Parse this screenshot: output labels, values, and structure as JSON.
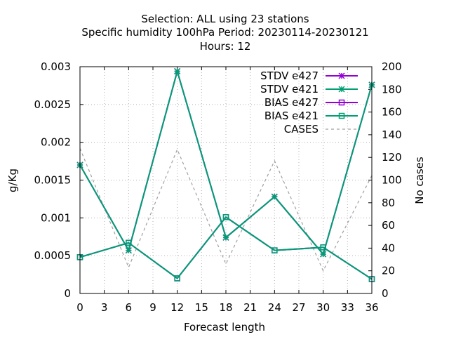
{
  "chart_data": {
    "type": "line",
    "title_lines": [
      "Selection: ALL using    23 stations",
      "Specific humidity 100hPa   Period: 20230114-20230121",
      "Hours:  12"
    ],
    "xlabel": "Forecast length",
    "ylabel": "g/Kg",
    "y2label": "No cases",
    "x": [
      0,
      6,
      12,
      18,
      24,
      30,
      36
    ],
    "xlim": [
      0,
      36
    ],
    "ylim": [
      0,
      0.003
    ],
    "y2lim": [
      0,
      200
    ],
    "x_ticks": [
      "0",
      "3",
      "6",
      "9",
      "12",
      "15",
      "18",
      "21",
      "24",
      "27",
      "30",
      "33",
      "36"
    ],
    "y_ticks": [
      "0",
      "0.0005",
      "0.001",
      "0.0015",
      "0.002",
      "0.0025",
      "0.003"
    ],
    "y2_ticks": [
      "0",
      "20",
      "40",
      "60",
      "80",
      "100",
      "120",
      "140",
      "160",
      "180",
      "200"
    ],
    "grid": true,
    "legend_position": "top-right",
    "series": [
      {
        "name": "STDV e427",
        "axis": "y",
        "color": "#9400d3",
        "marker": "star",
        "dash": false,
        "values": [
          0.0017,
          0.00057,
          0.00294,
          0.00074,
          0.00128,
          0.00052,
          0.00276
        ]
      },
      {
        "name": "STDV e421",
        "axis": "y",
        "color": "#009e73",
        "marker": "star",
        "dash": false,
        "values": [
          0.0017,
          0.00057,
          0.00294,
          0.00074,
          0.00128,
          0.00052,
          0.00276
        ]
      },
      {
        "name": "BIAS e427",
        "axis": "y",
        "color": "#9400d3",
        "marker": "square",
        "dash": false,
        "values": [
          0.00048,
          0.00067,
          0.0002,
          0.00101,
          0.00057,
          0.00061,
          0.00019
        ]
      },
      {
        "name": "BIAS e421",
        "axis": "y",
        "color": "#009e73",
        "marker": "square",
        "dash": false,
        "values": [
          0.00048,
          0.00067,
          0.0002,
          0.00101,
          0.00057,
          0.00061,
          0.00019
        ]
      },
      {
        "name": "CASES",
        "axis": "y2",
        "color": "#a0a0a0",
        "marker": "none",
        "dash": true,
        "values": [
          128,
          23,
          127,
          26,
          117,
          20,
          104
        ]
      }
    ]
  }
}
